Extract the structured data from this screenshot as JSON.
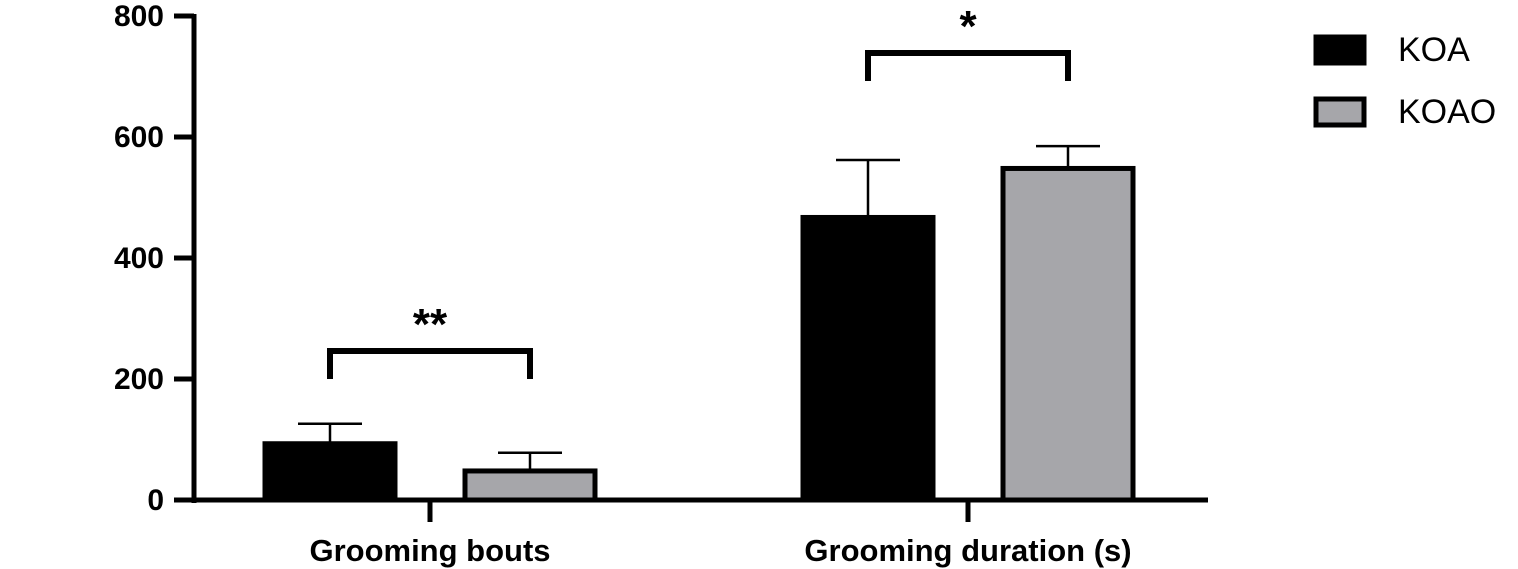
{
  "chart_data": {
    "type": "bar",
    "title": "",
    "xlabel": "",
    "ylabel": "",
    "ylim": [
      0,
      800
    ],
    "yticks": [
      "0",
      "200",
      "400",
      "600",
      "800"
    ],
    "yticks_values": [
      0,
      200,
      400,
      600,
      800
    ],
    "categories": [
      "Grooming bouts",
      "Grooming duration (s)"
    ],
    "series": [
      {
        "name": "KOA",
        "values": [
          93,
          467
        ],
        "error": [
          33,
          95
        ],
        "color": "#000000"
      },
      {
        "name": "KOAO",
        "values": [
          48,
          548
        ],
        "error": [
          30,
          37
        ],
        "color": "#a6a6aa"
      }
    ],
    "significance": [
      {
        "category_index": 0,
        "label": "**"
      },
      {
        "category_index": 1,
        "label": "*"
      }
    ],
    "legend": {
      "position": "top-right",
      "entries": [
        "KOA",
        "KOAO"
      ]
    },
    "grid": false
  }
}
